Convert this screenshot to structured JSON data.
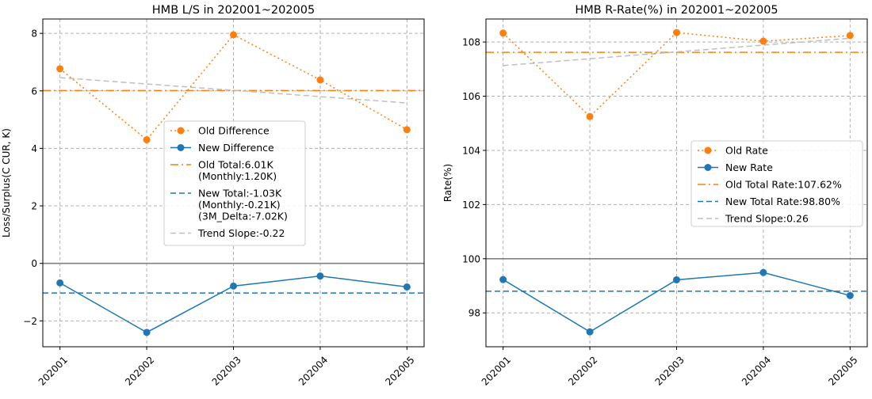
{
  "chart_data": [
    {
      "type": "line",
      "title": "HMB L/S in 202001~202005",
      "xlabel": "",
      "ylabel": "Loss/Surplus(C CUR, K)",
      "categories": [
        "202001",
        "202002",
        "202003",
        "202004",
        "202005"
      ],
      "ylim": [
        -2.9,
        8.5
      ],
      "yticks": [
        -2,
        0,
        2,
        4,
        6,
        8
      ],
      "grid": true,
      "legend_position": "center-right",
      "series": [
        {
          "name": "Old Difference",
          "values": [
            6.77,
            4.3,
            7.95,
            6.38,
            4.65
          ],
          "color": "#ff7f0e",
          "style": "dotted",
          "marker": "circle"
        },
        {
          "name": "New Difference",
          "values": [
            -0.68,
            -2.4,
            -0.79,
            -0.44,
            -0.82
          ],
          "color": "#1f77b4",
          "style": "solid",
          "marker": "circle"
        }
      ],
      "hlines": [
        {
          "name": "Old Total:6.01K\n(Monthly:1.20K)",
          "value": 6.01,
          "color": "#ff7f0e",
          "style": "dashdot"
        },
        {
          "name": "New Total:-1.03K\n(Monthly:-0.21K)\n(3M_Delta:-7.02K)",
          "value": -1.03,
          "color": "#1f77b4",
          "style": "dashed"
        },
        {
          "name": "",
          "value": 0,
          "color": "#808080",
          "style": "solid"
        }
      ],
      "trend": {
        "name": "Trend Slope:-0.22",
        "start": 6.46,
        "end": 5.58,
        "color": "#bfbfbf"
      }
    },
    {
      "type": "line",
      "title": "HMB R-Rate(%) in 202001~202005",
      "xlabel": "",
      "ylabel": "Rate(%)",
      "categories": [
        "202001",
        "202002",
        "202003",
        "202004",
        "202005"
      ],
      "ylim": [
        96.75,
        108.85
      ],
      "yticks": [
        98,
        100,
        102,
        104,
        106,
        108
      ],
      "grid": true,
      "legend_position": "center-right",
      "series": [
        {
          "name": "Old Rate",
          "values": [
            108.33,
            105.25,
            108.35,
            108.03,
            108.24
          ],
          "color": "#ff7f0e",
          "style": "dotted",
          "marker": "circle"
        },
        {
          "name": "New Rate",
          "values": [
            99.23,
            97.3,
            99.22,
            99.49,
            98.64
          ],
          "color": "#1f77b4",
          "style": "solid",
          "marker": "circle"
        }
      ],
      "hlines": [
        {
          "name": "Old Total Rate:107.62%",
          "value": 107.62,
          "color": "#ff7f0e",
          "style": "dashdot"
        },
        {
          "name": "New Total Rate:98.80%",
          "value": 98.8,
          "color": "#1f77b4",
          "style": "dashed"
        },
        {
          "name": "",
          "value": 100,
          "color": "#808080",
          "style": "solid"
        }
      ],
      "trend": {
        "name": "Trend Slope:0.26",
        "start": 107.13,
        "end": 108.14,
        "color": "#bfbfbf"
      }
    }
  ]
}
